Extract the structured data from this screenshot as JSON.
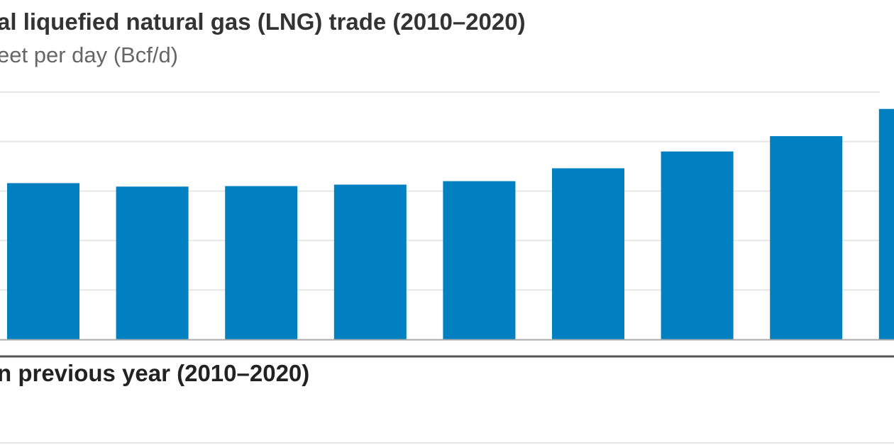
{
  "chart_data": {
    "type": "bar",
    "title": "al liquefied natural gas (LNG) trade (2010–2020)",
    "subtitle": "eet per day (Bcf/d)",
    "values": [
      31.6,
      30.9,
      31.0,
      31.3,
      32.0,
      34.6,
      38.0,
      41.1,
      46.6
    ],
    "ylim": [
      0,
      50
    ],
    "grid_step": 10,
    "grid": true,
    "bar_color": "#0080c0",
    "gridline_color": "#e6e6e6",
    "axis_color": "#999999"
  },
  "second_chart": {
    "title": "n previous year (2010–2020)"
  }
}
